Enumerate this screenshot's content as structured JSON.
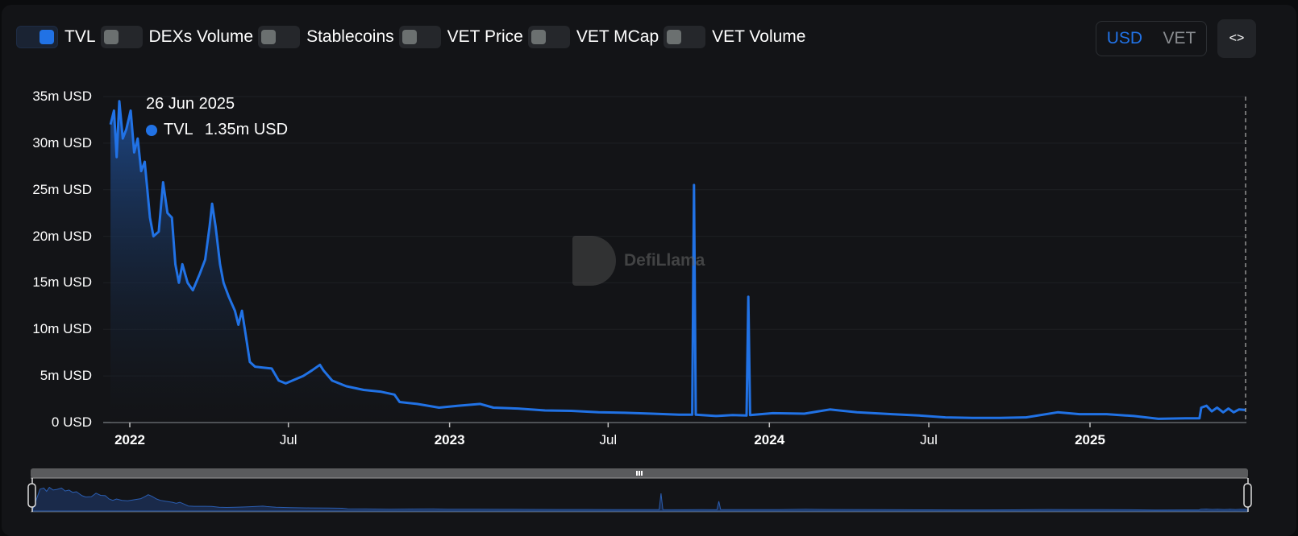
{
  "toggles": [
    {
      "label": "TVL",
      "on": true
    },
    {
      "label": "DEXs Volume",
      "on": false
    },
    {
      "label": "Stablecoins",
      "on": false
    },
    {
      "label": "VET Price",
      "on": false
    },
    {
      "label": "VET MCap",
      "on": false
    },
    {
      "label": "VET Volume",
      "on": false
    }
  ],
  "currency": {
    "options": [
      "USD",
      "VET"
    ],
    "selected": "USD"
  },
  "embed_button": {
    "icon": "code-brackets-icon",
    "glyph": "<>"
  },
  "tooltip": {
    "date": "26 Jun 2025",
    "series": "TVL",
    "value": "1.35m USD"
  },
  "watermark": {
    "text": "DefiLlama"
  },
  "colors": {
    "accent": "#2172e5",
    "background": "#131417",
    "grid": "#1e2024"
  },
  "chart_data": {
    "type": "area",
    "title": "",
    "series": [
      {
        "name": "TVL",
        "unit": "USD"
      }
    ],
    "ylabel": "USD",
    "ylim": [
      0,
      35000000
    ],
    "y_ticks": [
      "0 USD",
      "5m USD",
      "10m USD",
      "15m USD",
      "20m USD",
      "25m USD",
      "30m USD",
      "35m USD"
    ],
    "x_ticks": [
      "2022",
      "Jul",
      "2023",
      "Jul",
      "2024",
      "Jul",
      "2025"
    ],
    "x_tick_bold": [
      true,
      false,
      true,
      false,
      true,
      false,
      true
    ],
    "grid": true,
    "legend_position": "top",
    "x_range": [
      "Dec 2021",
      "Jun 2025"
    ],
    "points": [
      [
        "2021-12-10",
        32.0
      ],
      [
        "2021-12-14",
        33.5
      ],
      [
        "2021-12-17",
        28.5
      ],
      [
        "2021-12-20",
        34.5
      ],
      [
        "2021-12-24",
        30.5
      ],
      [
        "2021-12-28",
        31.5
      ],
      [
        "2022-01-02",
        33.5
      ],
      [
        "2022-01-06",
        29.0
      ],
      [
        "2022-01-10",
        30.5
      ],
      [
        "2022-01-14",
        27.0
      ],
      [
        "2022-01-18",
        28.0
      ],
      [
        "2022-01-24",
        22.0
      ],
      [
        "2022-01-28",
        20.0
      ],
      [
        "2022-02-03",
        20.5
      ],
      [
        "2022-02-08",
        25.8
      ],
      [
        "2022-02-13",
        22.5
      ],
      [
        "2022-02-18",
        22.0
      ],
      [
        "2022-02-22",
        17.0
      ],
      [
        "2022-02-26",
        15.0
      ],
      [
        "2022-03-02",
        17.0
      ],
      [
        "2022-03-08",
        15.0
      ],
      [
        "2022-03-14",
        14.2
      ],
      [
        "2022-03-22",
        16.0
      ],
      [
        "2022-03-28",
        17.5
      ],
      [
        "2022-04-02",
        21.0
      ],
      [
        "2022-04-05",
        23.5
      ],
      [
        "2022-04-09",
        21.0
      ],
      [
        "2022-04-14",
        17.0
      ],
      [
        "2022-04-18",
        15.0
      ],
      [
        "2022-04-24",
        13.5
      ],
      [
        "2022-05-01",
        12.0
      ],
      [
        "2022-05-05",
        10.5
      ],
      [
        "2022-05-09",
        12.0
      ],
      [
        "2022-05-14",
        9.0
      ],
      [
        "2022-05-18",
        6.5
      ],
      [
        "2022-05-24",
        6.0
      ],
      [
        "2022-06-02",
        5.9
      ],
      [
        "2022-06-12",
        5.8
      ],
      [
        "2022-06-20",
        4.5
      ],
      [
        "2022-06-28",
        4.2
      ],
      [
        "2022-07-08",
        4.6
      ],
      [
        "2022-07-18",
        5.0
      ],
      [
        "2022-07-28",
        5.6
      ],
      [
        "2022-08-06",
        6.2
      ],
      [
        "2022-08-10",
        5.6
      ],
      [
        "2022-08-20",
        4.5
      ],
      [
        "2022-09-05",
        3.9
      ],
      [
        "2022-09-25",
        3.5
      ],
      [
        "2022-10-15",
        3.3
      ],
      [
        "2022-10-30",
        3.0
      ],
      [
        "2022-11-05",
        2.2
      ],
      [
        "2022-11-25",
        2.0
      ],
      [
        "2022-12-20",
        1.6
      ],
      [
        "2023-01-10",
        1.8
      ],
      [
        "2023-02-05",
        2.0
      ],
      [
        "2023-02-20",
        1.6
      ],
      [
        "2023-03-20",
        1.5
      ],
      [
        "2023-04-20",
        1.3
      ],
      [
        "2023-05-20",
        1.25
      ],
      [
        "2023-06-20",
        1.1
      ],
      [
        "2023-07-20",
        1.05
      ],
      [
        "2023-08-20",
        0.95
      ],
      [
        "2023-09-20",
        0.85
      ],
      [
        "2023-10-05",
        0.85
      ],
      [
        "2023-10-07",
        25.5
      ],
      [
        "2023-10-09",
        0.85
      ],
      [
        "2023-11-01",
        0.7
      ],
      [
        "2023-11-20",
        0.8
      ],
      [
        "2023-12-06",
        0.75
      ],
      [
        "2023-12-08",
        13.5
      ],
      [
        "2023-12-10",
        0.8
      ],
      [
        "2024-01-05",
        1.0
      ],
      [
        "2024-02-10",
        0.95
      ],
      [
        "2024-03-10",
        1.4
      ],
      [
        "2024-04-10",
        1.1
      ],
      [
        "2024-05-20",
        0.9
      ],
      [
        "2024-06-20",
        0.75
      ],
      [
        "2024-07-20",
        0.55
      ],
      [
        "2024-08-20",
        0.5
      ],
      [
        "2024-09-20",
        0.5
      ],
      [
        "2024-10-20",
        0.55
      ],
      [
        "2024-11-25",
        1.1
      ],
      [
        "2024-12-20",
        0.9
      ],
      [
        "2025-01-20",
        0.9
      ],
      [
        "2025-02-20",
        0.7
      ],
      [
        "2025-03-20",
        0.4
      ],
      [
        "2025-04-20",
        0.45
      ],
      [
        "2025-05-06",
        0.45
      ],
      [
        "2025-05-08",
        1.6
      ],
      [
        "2025-05-14",
        1.8
      ],
      [
        "2025-05-20",
        1.2
      ],
      [
        "2025-05-26",
        1.6
      ],
      [
        "2025-06-02",
        1.1
      ],
      [
        "2025-06-08",
        1.5
      ],
      [
        "2025-06-14",
        1.1
      ],
      [
        "2025-06-20",
        1.4
      ],
      [
        "2025-06-26",
        1.35
      ]
    ]
  },
  "brush": {
    "handle_glyph": "|||"
  }
}
